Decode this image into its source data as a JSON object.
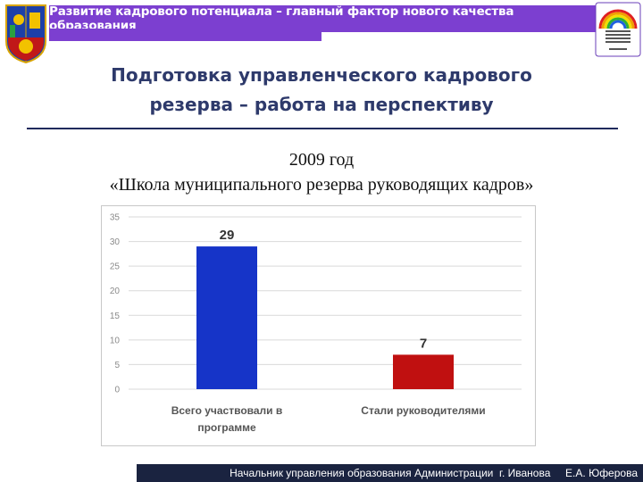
{
  "header": {
    "banner_text": "Развитие кадрового потенциала – главный фактор нового качества образования"
  },
  "title": {
    "line1": "Подготовка управленческого кадрового",
    "line2": "резерва – работа на перспективу"
  },
  "subtitle": {
    "line1": "2009 год",
    "line2": "«Школа муниципального резерва руководящих кадров»"
  },
  "footer": {
    "text": "Начальник управления образования Администрации  г. Иванова     Е.А. Юферова"
  },
  "colors": {
    "header": "#7c3fd0",
    "bar_blue": "#1634c8",
    "bar_red": "#c01010",
    "footer": "#1a2340"
  },
  "chart_data": {
    "type": "bar",
    "categories": [
      "Всего участвовали в программе",
      "Стали руководителями"
    ],
    "category_lines": [
      [
        "Всего участвовали в",
        "программе"
      ],
      [
        "Стали руководителями"
      ]
    ],
    "values": [
      29,
      7
    ],
    "bar_colors": [
      "#1634c8",
      "#c01010"
    ],
    "ylim": [
      0,
      35
    ],
    "yticks": [
      0,
      5,
      10,
      15,
      20,
      25,
      30,
      35
    ],
    "grid": true
  }
}
